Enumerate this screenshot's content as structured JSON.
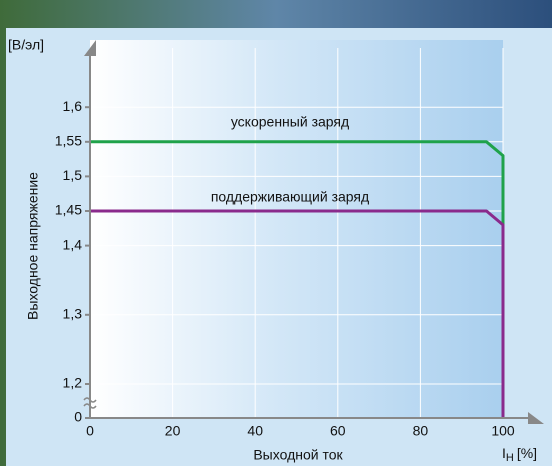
{
  "chart_data": {
    "type": "line",
    "y_label": "Выходное напряжение",
    "y_unit": "[В/эл]",
    "x_label": "Выходной ток",
    "x_unit": {
      "symbol": "I",
      "subscript": "Н",
      "suffix": "[%]"
    },
    "xlim": [
      0,
      105
    ],
    "xticks": [
      0,
      20,
      40,
      60,
      80,
      100
    ],
    "ylim": [
      0,
      1.7
    ],
    "yticks": [
      0,
      {
        "value": 1.2,
        "label": "1,2"
      },
      {
        "value": 1.3,
        "label": "1,3"
      },
      {
        "value": 1.4,
        "label": "1,4"
      },
      {
        "value": 1.45,
        "label": "1,45"
      },
      {
        "value": 1.5,
        "label": "1,5"
      },
      {
        "value": 1.55,
        "label": "1,55"
      },
      {
        "value": 1.6,
        "label": "1,6"
      }
    ],
    "y_axis_break": true,
    "grid": true,
    "series": [
      {
        "name": "ускоренный заряд",
        "color": "#1fa24a",
        "x": [
          0,
          96,
          100,
          100
        ],
        "values": [
          1.55,
          1.55,
          1.53,
          1.42
        ]
      },
      {
        "name": "поддерживающий заряд",
        "color": "#8a2a8c",
        "x": [
          0,
          96,
          100,
          100
        ],
        "values": [
          1.45,
          1.45,
          1.43,
          0
        ]
      }
    ]
  }
}
